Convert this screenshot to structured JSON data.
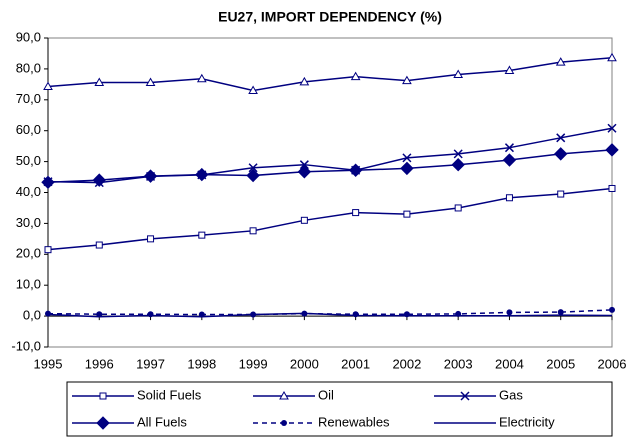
{
  "chart_data": {
    "type": "line",
    "title": "EU27, IMPORT DEPENDENCY (%)",
    "categories": [
      "1995",
      "1996",
      "1997",
      "1998",
      "1999",
      "2000",
      "2001",
      "2002",
      "2003",
      "2004",
      "2005",
      "2006"
    ],
    "ylim": [
      -10,
      90
    ],
    "yticks": [
      {
        "value": -10,
        "label": "-10,0"
      },
      {
        "value": 0,
        "label": "0,0"
      },
      {
        "value": 10,
        "label": "10,0"
      },
      {
        "value": 20,
        "label": "20,0"
      },
      {
        "value": 30,
        "label": "30,0"
      },
      {
        "value": 40,
        "label": "40,0"
      },
      {
        "value": 50,
        "label": "50,0"
      },
      {
        "value": 60,
        "label": "60,0"
      },
      {
        "value": 70,
        "label": "70,0"
      },
      {
        "value": 80,
        "label": "80,0"
      },
      {
        "value": 90,
        "label": "90,0"
      }
    ],
    "series": [
      {
        "name": "Solid Fuels",
        "color": "#000080",
        "marker": "square",
        "dash": false,
        "values": [
          21.5,
          23,
          25,
          26.2,
          27.6,
          31,
          33.5,
          33,
          35,
          38.3,
          39.5,
          41.3
        ]
      },
      {
        "name": "Oil",
        "color": "#000080",
        "marker": "triangle",
        "dash": false,
        "values": [
          74.3,
          75.6,
          75.6,
          76.8,
          73,
          75.8,
          77.5,
          76.2,
          78.2,
          79.5,
          82.2,
          83.6
        ]
      },
      {
        "name": "Gas",
        "color": "#000080",
        "marker": "cross",
        "dash": false,
        "values": [
          43.5,
          43.2,
          45.2,
          45.7,
          48,
          49,
          47.2,
          51.2,
          52.5,
          54.5,
          57.7,
          60.8
        ]
      },
      {
        "name": "All Fuels",
        "color": "#000080",
        "marker": "diamond",
        "dash": false,
        "values": [
          43.3,
          44,
          45.3,
          45.8,
          45.5,
          46.7,
          47.2,
          47.8,
          49,
          50.5,
          52.5,
          53.8
        ]
      },
      {
        "name": "Renewables",
        "color": "#000080",
        "marker": "dot",
        "dash": true,
        "values": [
          0.8,
          0.6,
          0.6,
          0.5,
          0.5,
          0.8,
          0.6,
          0.6,
          0.7,
          1.2,
          1.3,
          2.0
        ]
      },
      {
        "name": "Electricity",
        "color": "#000080",
        "marker": "none",
        "dash": false,
        "values": [
          0.5,
          -0.2,
          0.2,
          -0.2,
          0.5,
          0.9,
          0.2,
          0.1,
          0.1,
          0.1,
          0.3,
          0.2
        ]
      }
    ]
  }
}
